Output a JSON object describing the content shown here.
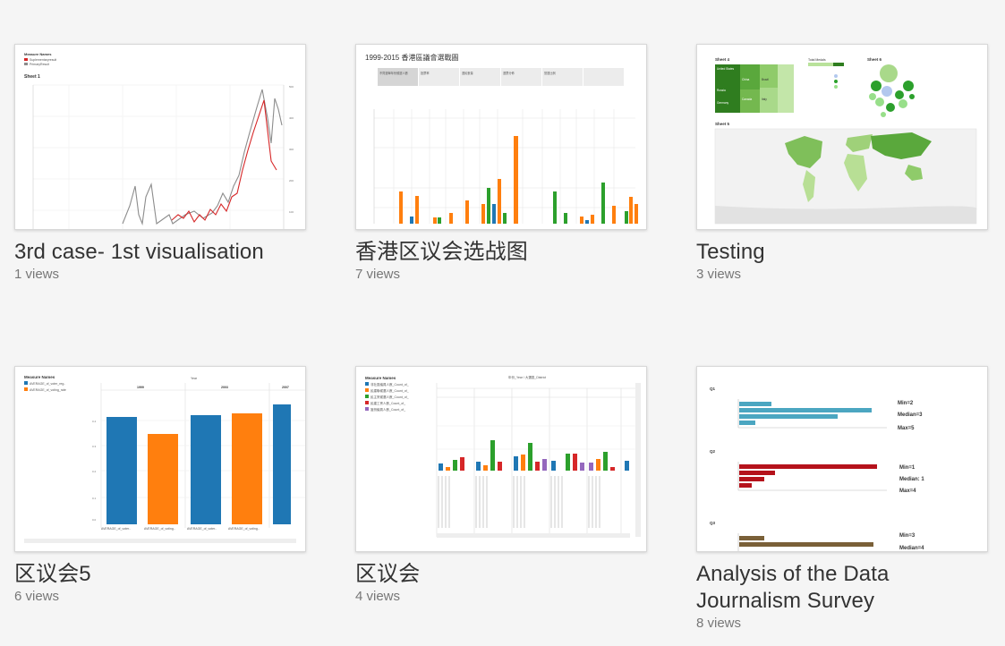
{
  "workbooks": [
    {
      "title": "3rd case- 1st visualisation",
      "views": "1 views",
      "thumb": {
        "legend_title": "Measure Names",
        "legend_items": [
          "Suplementaryresult",
          "PrimaryResult"
        ],
        "sheet": "Sheet 1"
      }
    },
    {
      "title": "香港区议会选战图",
      "views": "7 views",
      "thumb": {
        "heading": "1999-2015 香港區議會選戰圖",
        "tabs": [
          "不同選舉年份候選人數",
          "投票率",
          "選民數量",
          "選票分佈",
          "當選比例"
        ]
      }
    },
    {
      "title": "Testing",
      "views": "3 views",
      "thumb": {
        "sheet4": "Sheet 4",
        "sheet5": "Sheet 5",
        "sheet6": "Sheet 6",
        "legend_title": "Total Medals",
        "tree_labels": [
          "United States",
          "China",
          "Russia",
          "Germany",
          "Brazil",
          "Canada",
          "Italy",
          "Spain"
        ]
      }
    },
    {
      "title": "区议会5",
      "views": "6 views",
      "thumb": {
        "legend_title": "Measure Names",
        "legend_items": [
          "AVERAGE_of_voter_reg..",
          "AVERAGE_of_voting_rate"
        ],
        "year_label": "Year",
        "years": [
          "1999",
          "2003",
          "2007"
        ],
        "x_labels": [
          "AVERAGE_of_voter..",
          "AVERAGE_of_voting..",
          "AVERAGE_of_voter..",
          "AVERAGE_of_voting.."
        ]
      }
    },
    {
      "title": "区议会",
      "views": "4 views",
      "thumb": {
        "legend_title": "Measure Names",
        "legend_items": [
          "非社區議員人數_Count_of_",
          "民建聯候選人數_Count_of_",
          "民主黨候選人數_Count_of_",
          "民建工會人數_Count_of_",
          "當然議員人數_Count_of_"
        ],
        "header": "年份_Year / 大選區_District"
      }
    },
    {
      "title": "Analysis of the Data Journalism Survey",
      "views": "8 views",
      "thumb": {
        "q1": "Q1",
        "q2": "Q2",
        "q3": "Q3",
        "q1_stats": [
          "Min=2",
          "Median=3",
          "Max=5"
        ],
        "q2_stats": [
          "Min=1",
          "Median: 1",
          "Max=4"
        ],
        "q3_stats": [
          "Min=3",
          "Median=4"
        ]
      }
    }
  ],
  "colors": {
    "blue": "#1f77b4",
    "orange": "#ff7f0e",
    "green": "#2ca02c",
    "red": "#d62728",
    "purple": "#9467bd",
    "teal": "#4ba6c1",
    "crimson": "#b5121b",
    "olive": "#7a6038"
  }
}
